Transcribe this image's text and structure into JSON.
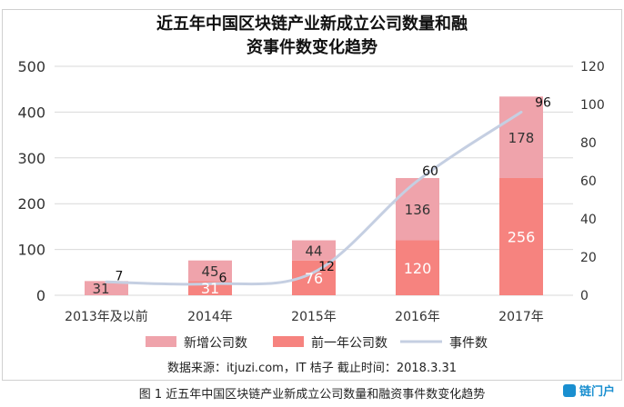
{
  "chart_data": {
    "type": "bar",
    "title": "近五年中国区块链产业新成立公司数量和融资事件数变化趋势",
    "categories": [
      "2013年及以前",
      "2014年",
      "2015年",
      "2016年",
      "2017年"
    ],
    "series": [
      {
        "name": "新增公司数",
        "type": "bar",
        "stack": "companies",
        "axis": "left",
        "values": [
          null,
          45,
          44,
          136,
          178
        ],
        "labels": [
          "31",
          "45",
          "44",
          "136",
          "178"
        ]
      },
      {
        "name": "前一年公司数",
        "type": "bar",
        "stack": "companies",
        "axis": "left",
        "values": [
          31,
          31,
          76,
          120,
          256
        ],
        "labels": [
          "",
          "31",
          "76",
          "120",
          "256"
        ]
      },
      {
        "name": "事件数",
        "type": "line",
        "axis": "right",
        "values": [
          7,
          6,
          12,
          60,
          96
        ]
      }
    ],
    "ylim_left": [
      0,
      500
    ],
    "yticks_left": [
      "0",
      "100",
      "200",
      "300",
      "400",
      "500"
    ],
    "ylim_right": [
      0,
      120
    ],
    "yticks_right": [
      "0",
      "20",
      "40",
      "60",
      "80",
      "100",
      "120"
    ],
    "grid": true,
    "legend_position": "bottom",
    "colors": {
      "new": "#efa3ab",
      "prev": "#f6837f",
      "events": "#c5cfe2",
      "grid": "#d9d9d9",
      "axis_text": "#333333"
    }
  },
  "footer": {
    "source": "数据来源：itjuzi.com，IT 桔子      截止时间：2018.3.31",
    "caption": "图 1   近五年中国区块链产业新成立公司数量和融资事件数变化趋势",
    "brand": "链门户"
  }
}
